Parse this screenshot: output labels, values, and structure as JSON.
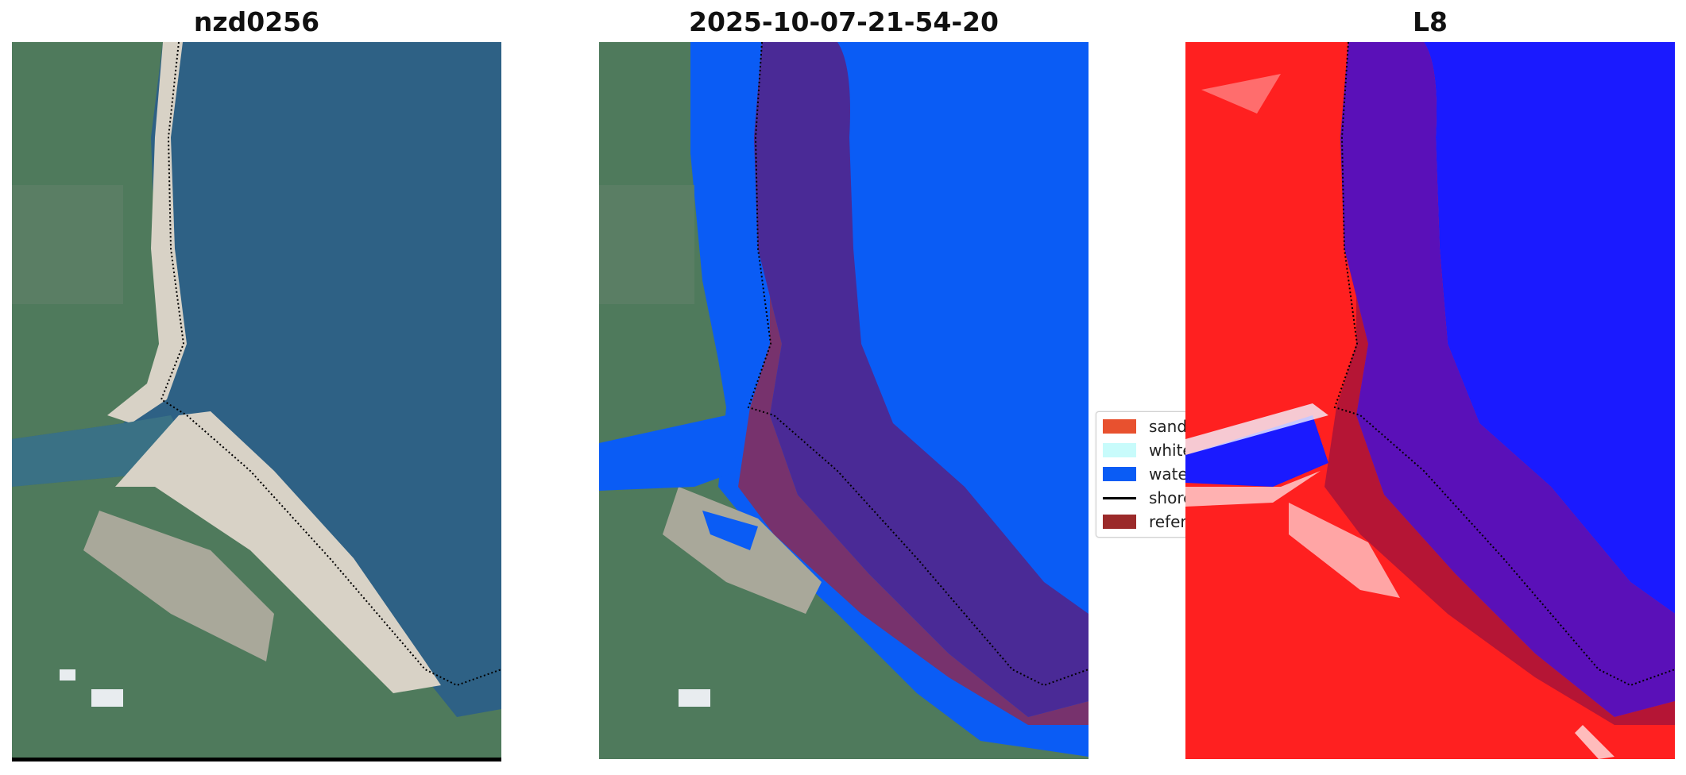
{
  "panels": [
    {
      "title": "nzd0256"
    },
    {
      "title": "2025-10-07-21-54-20"
    },
    {
      "title": "L8"
    }
  ],
  "legend": {
    "items": [
      {
        "label": "sand",
        "color": "#e8512f",
        "kind": "patch"
      },
      {
        "label": "white-water",
        "color": "#c8fbfb",
        "kind": "patch"
      },
      {
        "label": "water",
        "color": "#0a5cf5",
        "kind": "patch"
      },
      {
        "label": "shoreline",
        "color": "#000000",
        "kind": "line"
      },
      {
        "label": "reference shoreline buffer",
        "color": "#9b2a2a",
        "kind": "patch"
      }
    ]
  },
  "colors": {
    "ocean": "#2e6185",
    "land": "#4f7a5c",
    "sand": "#d8d2c6",
    "water_class": "#0a5cf5",
    "buffer": "#8b2a55",
    "index_land": "#ff2020",
    "index_water": "#1a1aff"
  }
}
